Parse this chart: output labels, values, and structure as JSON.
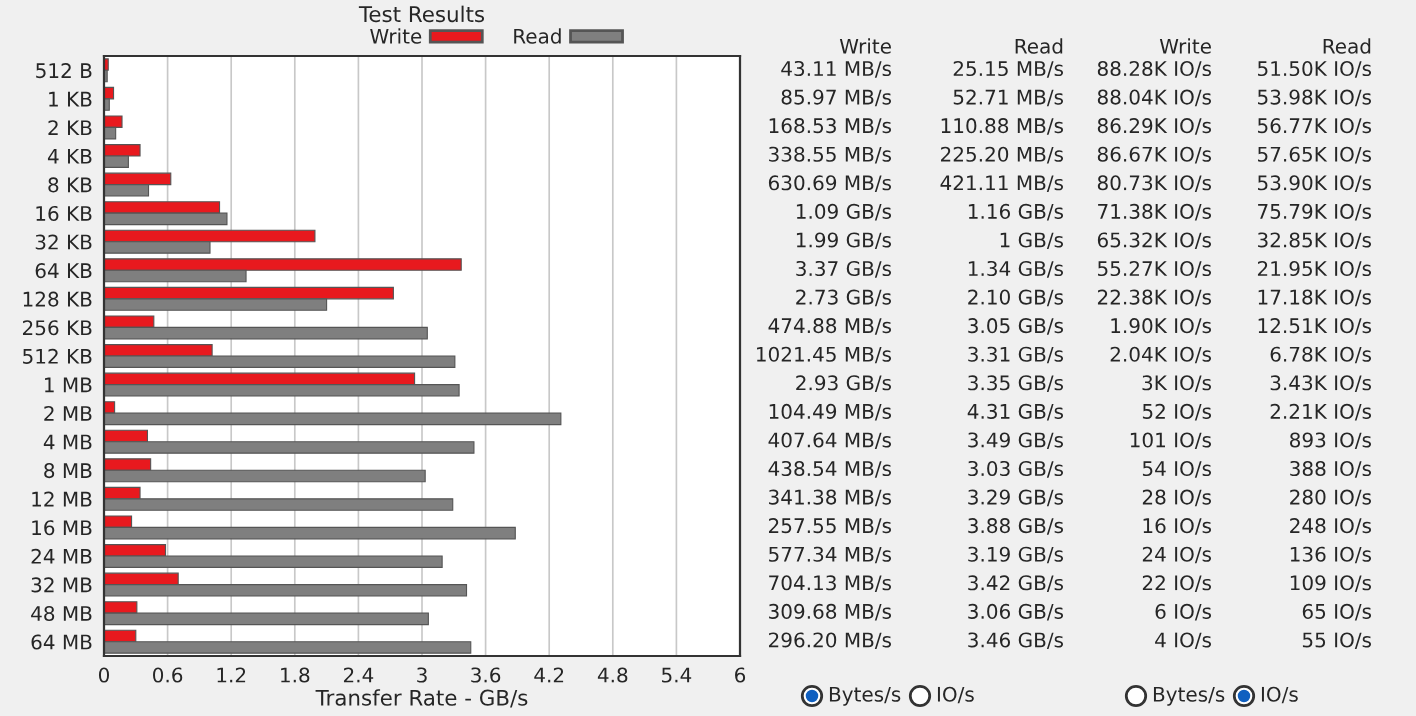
{
  "chart_data": [
    {
      "type": "bar",
      "orientation": "horizontal",
      "title": "Test Results",
      "xlabel": "Transfer Rate - GB/s",
      "categories": [
        "512 B",
        "1 KB",
        "2 KB",
        "4 KB",
        "8 KB",
        "16 KB",
        "32 KB",
        "64 KB",
        "128 KB",
        "256 KB",
        "512 KB",
        "1 MB",
        "2 MB",
        "4 MB",
        "8 MB",
        "12 MB",
        "16 MB",
        "24 MB",
        "32 MB",
        "48 MB",
        "64 MB"
      ],
      "series": [
        {
          "name": "Write",
          "color": "#e8191e",
          "values": [
            0.04,
            0.09,
            0.17,
            0.34,
            0.63,
            1.09,
            1.99,
            3.37,
            2.73,
            0.47,
            1.02,
            2.93,
            0.1,
            0.41,
            0.44,
            0.34,
            0.26,
            0.58,
            0.7,
            0.31,
            0.3
          ]
        },
        {
          "name": "Read",
          "color": "#7f7f7f",
          "values": [
            0.03,
            0.05,
            0.11,
            0.23,
            0.42,
            1.16,
            1.0,
            1.34,
            2.1,
            3.05,
            3.31,
            3.35,
            4.31,
            3.49,
            3.03,
            3.29,
            3.88,
            3.19,
            3.42,
            3.06,
            3.46
          ]
        }
      ],
      "xlim": [
        0,
        6
      ],
      "xticks": [
        0,
        0.6,
        1.2,
        1.8,
        2.4,
        3,
        3.6,
        4.2,
        4.8,
        5.4,
        6
      ],
      "grid": "x",
      "legend": "top"
    },
    {
      "type": "other",
      "categories": [
        "Write",
        "Read"
      ],
      "cell_labels": [
        [
          "43.11 MB/s",
          "25.15 MB/s"
        ],
        [
          "85.97 MB/s",
          "52.71 MB/s"
        ],
        [
          "168.53 MB/s",
          "110.88 MB/s"
        ],
        [
          "338.55 MB/s",
          "225.20 MB/s"
        ],
        [
          "630.69 MB/s",
          "421.11 MB/s"
        ],
        [
          "1.09 GB/s",
          "1.16 GB/s"
        ],
        [
          "1.99 GB/s",
          "1 GB/s"
        ],
        [
          "3.37 GB/s",
          "1.34 GB/s"
        ],
        [
          "2.73 GB/s",
          "2.10 GB/s"
        ],
        [
          "474.88 MB/s",
          "3.05 GB/s"
        ],
        [
          "1021.45 MB/s",
          "3.31 GB/s"
        ],
        [
          "2.93 GB/s",
          "3.35 GB/s"
        ],
        [
          "104.49 MB/s",
          "4.31 GB/s"
        ],
        [
          "407.64 MB/s",
          "3.49 GB/s"
        ],
        [
          "438.54 MB/s",
          "3.03 GB/s"
        ],
        [
          "341.38 MB/s",
          "3.29 GB/s"
        ],
        [
          "257.55 MB/s",
          "3.88 GB/s"
        ],
        [
          "577.34 MB/s",
          "3.19 GB/s"
        ],
        [
          "704.13 MB/s",
          "3.42 GB/s"
        ],
        [
          "309.68 MB/s",
          "3.06 GB/s"
        ],
        [
          "296.20 MB/s",
          "3.46 GB/s"
        ]
      ],
      "annotations": [
        "Bytes/s",
        "IO/s"
      ]
    },
    {
      "type": "other",
      "categories": [
        "Write",
        "Read"
      ],
      "cell_labels": [
        [
          "88.28K IO/s",
          "51.50K IO/s"
        ],
        [
          "88.04K IO/s",
          "53.98K IO/s"
        ],
        [
          "86.29K IO/s",
          "56.77K IO/s"
        ],
        [
          "86.67K IO/s",
          "57.65K IO/s"
        ],
        [
          "80.73K IO/s",
          "53.90K IO/s"
        ],
        [
          "71.38K IO/s",
          "75.79K IO/s"
        ],
        [
          "65.32K IO/s",
          "32.85K IO/s"
        ],
        [
          "55.27K IO/s",
          "21.95K IO/s"
        ],
        [
          "22.38K IO/s",
          "17.18K IO/s"
        ],
        [
          "1.90K IO/s",
          "12.51K IO/s"
        ],
        [
          "2.04K IO/s",
          "6.78K IO/s"
        ],
        [
          "3K IO/s",
          "3.43K IO/s"
        ],
        [
          "52 IO/s",
          "2.21K IO/s"
        ],
        [
          "101 IO/s",
          "893 IO/s"
        ],
        [
          "54 IO/s",
          "388 IO/s"
        ],
        [
          "28 IO/s",
          "280 IO/s"
        ],
        [
          "16 IO/s",
          "248 IO/s"
        ],
        [
          "24 IO/s",
          "136 IO/s"
        ],
        [
          "22 IO/s",
          "109 IO/s"
        ],
        [
          "6 IO/s",
          "65 IO/s"
        ],
        [
          "4 IO/s",
          "55 IO/s"
        ]
      ],
      "annotations": [
        "Bytes/s",
        "IO/s"
      ]
    }
  ]
}
